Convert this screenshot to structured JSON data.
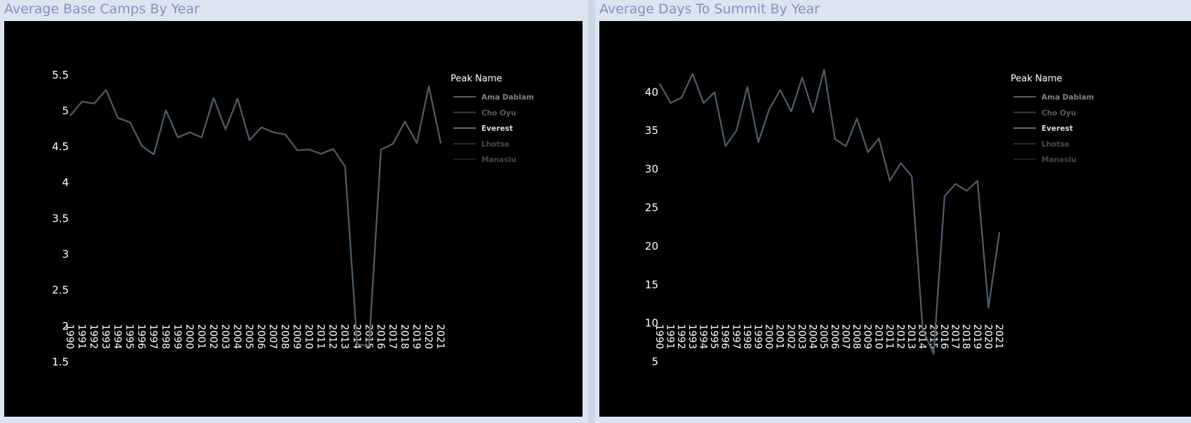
{
  "panels": [
    {
      "title": "Average Base Camps By Year",
      "chart_data": {
        "type": "line",
        "title": "",
        "xlabel": "",
        "ylabel": "",
        "x": [
          "1990",
          "1991",
          "1992",
          "1993",
          "1994",
          "1995",
          "1996",
          "1997",
          "1998",
          "1999",
          "2000",
          "2001",
          "2002",
          "2003",
          "2004",
          "2005",
          "2006",
          "2007",
          "2008",
          "2009",
          "2010",
          "2011",
          "2012",
          "2013",
          "2014",
          "2015",
          "2016",
          "2017",
          "2018",
          "2019",
          "2020",
          "2021"
        ],
        "yticks": [
          "1.5",
          "2",
          "2.5",
          "3",
          "3.5",
          "4",
          "4.5",
          "5",
          "5.5"
        ],
        "ylim": [
          1.45,
          5.85
        ],
        "series": [
          {
            "name": "Everest",
            "color": "#4f5e6b",
            "values": [
              4.92,
              5.12,
              5.09,
              5.28,
              4.89,
              4.83,
              4.5,
              4.38,
              5.0,
              4.62,
              4.69,
              4.62,
              5.17,
              4.73,
              5.16,
              4.58,
              4.76,
              4.69,
              4.66,
              4.44,
              4.45,
              4.39,
              4.46,
              4.21,
              1.74,
              1.71,
              4.45,
              4.53,
              4.84,
              4.54,
              5.33,
              4.54
            ]
          }
        ],
        "legend": {
          "title": "Peak Name",
          "position": "top-right",
          "items": [
            {
              "label": "Ama Dablam",
              "color": "#4d5a66",
              "text_color": "#808080"
            },
            {
              "label": "Cho Oyu",
              "color": "#2f3a46",
              "text_color": "#5e5e5e"
            },
            {
              "label": "Everest",
              "color": "#5a6976",
              "text_color": "#dcdcdc"
            },
            {
              "label": "Lhotse",
              "color": "#2a2a20",
              "text_color": "#4e4e4e"
            },
            {
              "label": "Manaslu",
              "color": "#1e2418",
              "text_color": "#464646"
            }
          ]
        }
      }
    },
    {
      "title": "Average Days To Summit By Year",
      "chart_data": {
        "type": "line",
        "title": "",
        "xlabel": "",
        "ylabel": "",
        "x": [
          "1990",
          "1991",
          "1992",
          "1993",
          "1994",
          "1995",
          "1996",
          "1997",
          "1998",
          "1999",
          "2000",
          "2001",
          "2002",
          "2003",
          "2004",
          "2005",
          "2006",
          "2007",
          "2008",
          "2009",
          "2010",
          "2011",
          "2012",
          "2013",
          "2014",
          "2015",
          "2016",
          "2017",
          "2018",
          "2019",
          "2020",
          "2021"
        ],
        "yticks": [
          "5",
          "10",
          "15",
          "20",
          "25",
          "30",
          "35",
          "40"
        ],
        "ylim": [
          4.5,
          45.5
        ],
        "series": [
          {
            "name": "Everest",
            "color": "#4f5e6b",
            "values": [
              41.0,
              38.5,
              39.2,
              42.3,
              38.5,
              39.9,
              32.9,
              34.9,
              40.6,
              33.4,
              37.7,
              40.2,
              37.4,
              41.8,
              37.3,
              42.8,
              33.8,
              32.9,
              36.5,
              32.1,
              33.9,
              28.4,
              30.7,
              29.0,
              9.1,
              5.9,
              26.4,
              28.0,
              27.1,
              28.4,
              11.9,
              21.7
            ]
          }
        ],
        "legend": {
          "title": "Peak Name",
          "position": "top-right",
          "items": [
            {
              "label": "Ama Dablam",
              "color": "#4d5a66",
              "text_color": "#808080"
            },
            {
              "label": "Cho Oyu",
              "color": "#2f3a46",
              "text_color": "#5e5e5e"
            },
            {
              "label": "Everest",
              "color": "#5a6976",
              "text_color": "#dcdcdc"
            },
            {
              "label": "Lhotse",
              "color": "#2a2a20",
              "text_color": "#4e4e4e"
            },
            {
              "label": "Manaslu",
              "color": "#1e2418",
              "text_color": "#464646"
            }
          ]
        }
      }
    }
  ]
}
